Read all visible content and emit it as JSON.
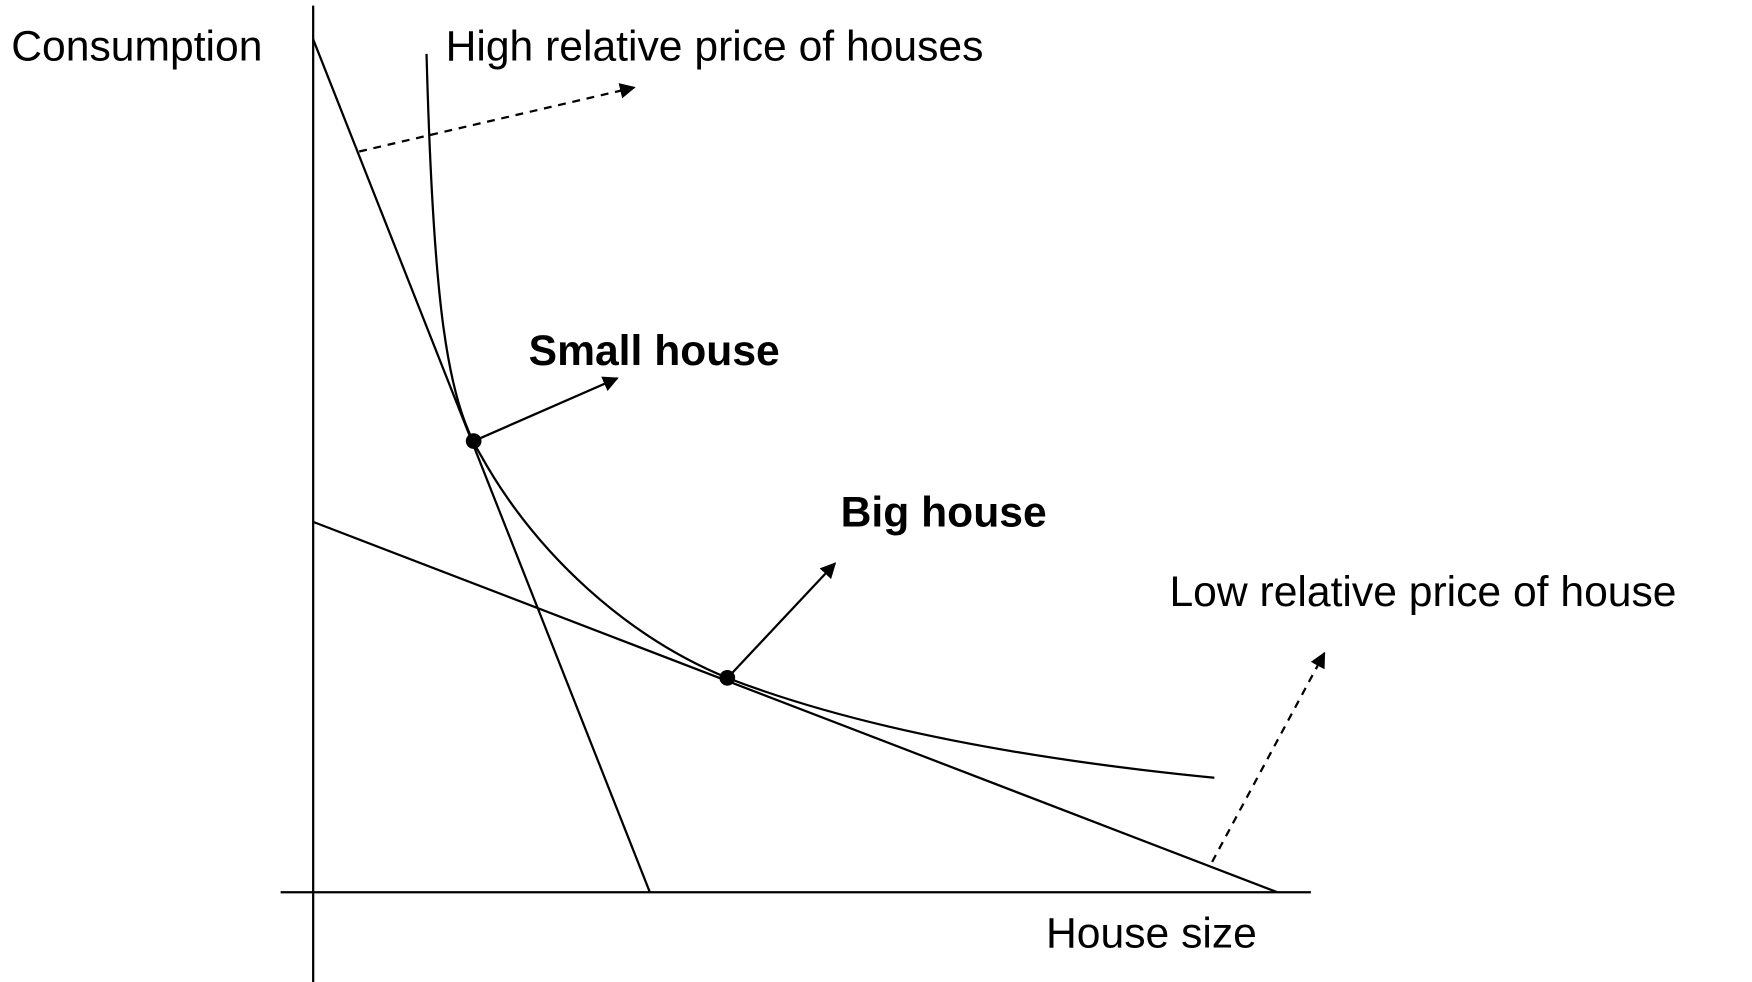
{
  "axes": {
    "y_label": "Consumption",
    "x_label": "House size"
  },
  "labels": {
    "high_price": "High relative price of houses",
    "low_price": "Low relative price of house",
    "small_house": "Small house",
    "big_house": "Big house"
  }
}
